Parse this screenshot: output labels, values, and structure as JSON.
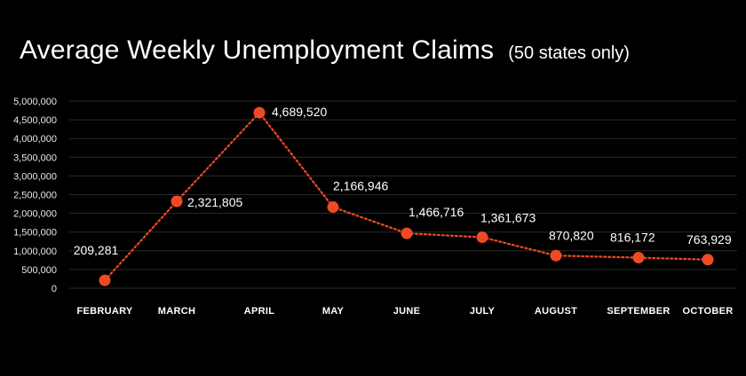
{
  "chart_data": {
    "type": "line",
    "title": "Average Weekly Unemployment Claims",
    "subtitle": "(50 states only)",
    "xlabel": "",
    "ylabel": "",
    "categories": [
      "FEBRUARY",
      "MARCH",
      "APRIL",
      "MAY",
      "JUNE",
      "JULY",
      "AUGUST",
      "SEPTEMBER",
      "OCTOBER"
    ],
    "series": [
      {
        "values": [
          209281,
          2321805,
          4689520,
          2166946,
          1466716,
          1361673,
          870820,
          816172,
          763929
        ]
      }
    ],
    "data_labels": [
      "209,281",
      "2,321,805",
      "4,689,520",
      "2,166,946",
      "1,466,716",
      "1,361,673",
      "870,820",
      "816,172",
      "763,929"
    ],
    "ylim": [
      0,
      5000000
    ],
    "yticks": [
      0,
      500000,
      1000000,
      1500000,
      2000000,
      2500000,
      3000000,
      3500000,
      4000000,
      4500000,
      5000000
    ],
    "ytick_labels": [
      "0",
      "500,000",
      "1,000,000",
      "1,500,000",
      "2,000,000",
      "2,500,000",
      "3,000,000",
      "3,500,000",
      "4,000,000",
      "4,500,000",
      "5,000,000"
    ],
    "grid": true,
    "legend": "none",
    "line_style": "dotted",
    "colors": {
      "background": "#000000",
      "series": "#f04a23",
      "grid": "#2a2a2a",
      "text": "#ffffff"
    }
  }
}
